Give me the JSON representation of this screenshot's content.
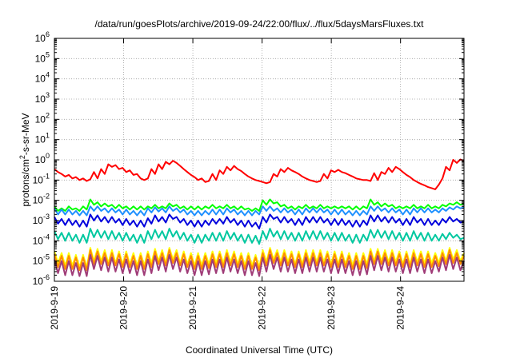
{
  "chart_data": {
    "type": "line",
    "title": "/data/run/goesPlots/archive/2019-09-24/22:00/flux/../flux/5daysMarsFluxes.txt",
    "xlabel": "Coordinated Universal Time (UTC)",
    "ylabel": {
      "before": "protons/cm",
      "sup": "2",
      "after": "-s-sr-MeV"
    },
    "x_ticks": [
      "2019-9-19",
      "2019-9-20",
      "2019-9-21",
      "2019-9-22",
      "2019-9-23",
      "2019-9-24"
    ],
    "xlim": [
      "2019-09-19T00:00",
      "2019-09-24T22:00"
    ],
    "y_scale": "log",
    "ylim": [
      1e-06,
      1000000.0
    ],
    "y_ticks": [
      {
        "base": "10",
        "exp": "6"
      },
      {
        "base": "10",
        "exp": "5"
      },
      {
        "base": "10",
        "exp": "4"
      },
      {
        "base": "10",
        "exp": "3"
      },
      {
        "base": "10",
        "exp": "2"
      },
      {
        "base": "10",
        "exp": "1"
      },
      {
        "base": "10",
        "exp": "0"
      },
      {
        "base": "10",
        "exp": "-1"
      },
      {
        "base": "10",
        "exp": "-2"
      },
      {
        "base": "10",
        "exp": "-3"
      },
      {
        "base": "10",
        "exp": "-4"
      },
      {
        "base": "10",
        "exp": "-5"
      },
      {
        "base": "10",
        "exp": "-6"
      }
    ],
    "grid": true,
    "legend": "none",
    "series": [
      {
        "color": "#ff0000",
        "values": [
          0.35,
          0.25,
          0.2,
          0.15,
          0.18,
          0.12,
          0.14,
          0.1,
          0.12,
          0.09,
          0.11,
          0.25,
          0.12,
          0.35,
          0.2,
          0.6,
          0.45,
          0.55,
          0.35,
          0.4,
          0.25,
          0.3,
          0.18,
          0.2,
          0.12,
          0.1,
          0.12,
          0.35,
          0.2,
          0.6,
          0.35,
          0.8,
          0.6,
          0.9,
          0.7,
          0.5,
          0.35,
          0.25,
          0.18,
          0.14,
          0.1,
          0.12,
          0.08,
          0.09,
          0.2,
          0.1,
          0.3,
          0.2,
          0.45,
          0.3,
          0.5,
          0.35,
          0.28,
          0.2,
          0.15,
          0.12,
          0.1,
          0.09,
          0.08,
          0.07,
          0.08,
          0.2,
          0.15,
          0.35,
          0.25,
          0.4,
          0.3,
          0.25,
          0.2,
          0.15,
          0.12,
          0.1,
          0.09,
          0.08,
          0.09,
          0.2,
          0.12,
          0.3,
          0.25,
          0.32,
          0.25,
          0.22,
          0.18,
          0.15,
          0.12,
          0.11,
          0.1,
          0.1,
          0.09,
          0.22,
          0.1,
          0.25,
          0.2,
          0.4,
          0.25,
          0.45,
          0.35,
          0.25,
          0.18,
          0.14,
          0.1,
          0.08,
          0.065,
          0.055,
          0.045,
          0.04,
          0.035,
          0.06,
          0.12,
          0.45,
          0.3,
          1.0,
          0.7,
          1.05,
          0.9
        ]
      },
      {
        "color": "#00ff00",
        "values": [
          0.005,
          0.003,
          0.004,
          0.003,
          0.005,
          0.0035,
          0.004,
          0.003,
          0.005,
          0.0035,
          0.011,
          0.006,
          0.008,
          0.005,
          0.007,
          0.005,
          0.006,
          0.004,
          0.006,
          0.004,
          0.005,
          0.0035,
          0.005,
          0.0035,
          0.005,
          0.0035,
          0.005,
          0.004,
          0.006,
          0.004,
          0.005,
          0.004,
          0.007,
          0.005,
          0.006,
          0.004,
          0.005,
          0.0035,
          0.005,
          0.0035,
          0.005,
          0.0035,
          0.005,
          0.004,
          0.006,
          0.004,
          0.005,
          0.004,
          0.006,
          0.004,
          0.005,
          0.0035,
          0.005,
          0.0035,
          0.004,
          0.003,
          0.004,
          0.003,
          0.01,
          0.006,
          0.011,
          0.007,
          0.008,
          0.005,
          0.006,
          0.004,
          0.005,
          0.0035,
          0.005,
          0.004,
          0.006,
          0.004,
          0.005,
          0.004,
          0.006,
          0.004,
          0.005,
          0.004,
          0.005,
          0.004,
          0.005,
          0.004,
          0.005,
          0.0035,
          0.005,
          0.0035,
          0.005,
          0.004,
          0.011,
          0.006,
          0.008,
          0.005,
          0.007,
          0.005,
          0.006,
          0.004,
          0.005,
          0.004,
          0.005,
          0.004,
          0.006,
          0.004,
          0.005,
          0.004,
          0.006,
          0.004,
          0.005,
          0.004,
          0.006,
          0.005,
          0.007,
          0.006,
          0.008,
          0.006,
          0.007
        ]
      },
      {
        "color": "#1e90ff",
        "values": [
          0.004,
          0.002,
          0.0035,
          0.002,
          0.0035,
          0.002,
          0.003,
          0.0018,
          0.003,
          0.0018,
          0.005,
          0.003,
          0.005,
          0.003,
          0.004,
          0.0025,
          0.004,
          0.0025,
          0.0035,
          0.002,
          0.0035,
          0.002,
          0.003,
          0.0018,
          0.003,
          0.0018,
          0.004,
          0.0025,
          0.0045,
          0.0028,
          0.004,
          0.0025,
          0.005,
          0.003,
          0.004,
          0.0025,
          0.0035,
          0.002,
          0.003,
          0.0018,
          0.003,
          0.0018,
          0.003,
          0.002,
          0.0035,
          0.002,
          0.0035,
          0.002,
          0.004,
          0.0025,
          0.0035,
          0.002,
          0.003,
          0.0018,
          0.003,
          0.0018,
          0.003,
          0.002,
          0.005,
          0.003,
          0.005,
          0.003,
          0.004,
          0.0025,
          0.004,
          0.0025,
          0.0035,
          0.002,
          0.0035,
          0.002,
          0.004,
          0.0025,
          0.004,
          0.0025,
          0.004,
          0.0025,
          0.0035,
          0.002,
          0.0035,
          0.002,
          0.0035,
          0.002,
          0.003,
          0.0018,
          0.003,
          0.0018,
          0.003,
          0.002,
          0.005,
          0.003,
          0.005,
          0.003,
          0.004,
          0.0025,
          0.004,
          0.0025,
          0.0035,
          0.002,
          0.0035,
          0.002,
          0.004,
          0.0025,
          0.004,
          0.0025,
          0.004,
          0.0025,
          0.0035,
          0.0025,
          0.004,
          0.003,
          0.0045,
          0.0035,
          0.005,
          0.004,
          0.0045
        ]
      },
      {
        "color": "#0000dd",
        "values": [
          0.0015,
          0.0007,
          0.0012,
          0.0006,
          0.0012,
          0.0006,
          0.001,
          0.0005,
          0.001,
          0.0005,
          0.002,
          0.001,
          0.0018,
          0.0009,
          0.0015,
          0.0008,
          0.0015,
          0.0008,
          0.0012,
          0.0006,
          0.0012,
          0.0006,
          0.001,
          0.0005,
          0.001,
          0.0005,
          0.0013,
          0.0007,
          0.0018,
          0.0009,
          0.0015,
          0.0008,
          0.002,
          0.0012,
          0.0015,
          0.0008,
          0.0012,
          0.0006,
          0.001,
          0.0005,
          0.001,
          0.0005,
          0.001,
          0.0006,
          0.0012,
          0.0007,
          0.0012,
          0.0007,
          0.0015,
          0.0008,
          0.0012,
          0.0006,
          0.001,
          0.0005,
          0.001,
          0.0005,
          0.0008,
          0.0004,
          0.0015,
          0.0008,
          0.002,
          0.0012,
          0.0015,
          0.0008,
          0.0015,
          0.0008,
          0.0012,
          0.0006,
          0.0012,
          0.0006,
          0.0015,
          0.0008,
          0.0015,
          0.0008,
          0.0015,
          0.0008,
          0.0012,
          0.0006,
          0.0012,
          0.0006,
          0.0012,
          0.0006,
          0.001,
          0.0005,
          0.001,
          0.0005,
          0.001,
          0.0006,
          0.0018,
          0.0009,
          0.0018,
          0.0009,
          0.0015,
          0.0008,
          0.0015,
          0.0008,
          0.0012,
          0.0006,
          0.0012,
          0.0006,
          0.0015,
          0.0008,
          0.0012,
          0.0006,
          0.0012,
          0.0006,
          0.001,
          0.0006,
          0.0012,
          0.0008,
          0.0015,
          0.0009,
          0.0012,
          0.0008,
          0.0009
        ]
      },
      {
        "color": "#00c8a0",
        "values": [
          0.0003,
          0.00012,
          0.00025,
          0.0001,
          0.00025,
          0.0001,
          0.0002,
          8e-05,
          0.0002,
          8e-05,
          0.0004,
          0.00015,
          0.00035,
          0.00014,
          0.0003,
          0.00012,
          0.0003,
          0.00012,
          0.00025,
          0.0001,
          0.00025,
          0.0001,
          0.0002,
          8e-05,
          0.0002,
          8e-05,
          0.0003,
          0.00012,
          0.00035,
          0.00014,
          0.0003,
          0.00012,
          0.0004,
          0.00016,
          0.0003,
          0.00012,
          0.00025,
          0.0001,
          0.0002,
          8e-05,
          0.0002,
          8e-05,
          0.0002,
          0.0001,
          0.00025,
          0.0001,
          0.00025,
          0.0001,
          0.0003,
          0.00012,
          0.00025,
          0.0001,
          0.0002,
          8e-05,
          0.0002,
          8e-05,
          0.00018,
          7e-05,
          0.0003,
          0.00012,
          0.0004,
          0.00016,
          0.0003,
          0.00012,
          0.0003,
          0.00012,
          0.00025,
          0.0001,
          0.00025,
          0.0001,
          0.0003,
          0.00012,
          0.0003,
          0.00012,
          0.0003,
          0.00012,
          0.00025,
          0.0001,
          0.00025,
          0.0001,
          0.00025,
          0.0001,
          0.0002,
          8e-05,
          0.0002,
          8e-05,
          0.0002,
          0.0001,
          0.00035,
          0.00014,
          0.00035,
          0.00014,
          0.0003,
          0.00012,
          0.0003,
          0.00012,
          0.00025,
          0.0001,
          0.00025,
          0.0001,
          0.0003,
          0.00012,
          0.00025,
          0.0001,
          0.00025,
          0.0001,
          0.0002,
          0.0001,
          0.00022,
          0.00012,
          0.00025,
          0.00014,
          0.0002,
          0.00012,
          0.00014
        ]
      },
      {
        "color": "#ffff00",
        "values": [
          3e-05,
          8e-06,
          2.5e-05,
          6e-06,
          2.5e-05,
          6e-06,
          2e-05,
          5e-06,
          2e-05,
          5e-06,
          4.5e-05,
          1e-05,
          4e-05,
          1e-05,
          3.5e-05,
          8e-06,
          3.5e-05,
          8e-06,
          3e-05,
          7e-06,
          3e-05,
          7e-06,
          2.5e-05,
          6e-06,
          2.5e-05,
          6e-06,
          3e-05,
          8e-06,
          4e-05,
          1e-05,
          3.5e-05,
          8e-06,
          4.5e-05,
          1.2e-05,
          3.5e-05,
          8e-06,
          3e-05,
          7e-06,
          2.5e-05,
          6e-06,
          2.5e-05,
          6e-06,
          2.5e-05,
          7e-06,
          3e-05,
          8e-06,
          3e-05,
          8e-06,
          3.5e-05,
          9e-06,
          3e-05,
          7e-06,
          2.5e-05,
          6e-06,
          2.5e-05,
          6e-06,
          2e-05,
          5e-06,
          3.5e-05,
          9e-06,
          4.5e-05,
          1.2e-05,
          3.5e-05,
          9e-06,
          3.5e-05,
          9e-06,
          3e-05,
          7e-06,
          3e-05,
          7e-06,
          3.5e-05,
          9e-06,
          3.5e-05,
          9e-06,
          3.5e-05,
          9e-06,
          3e-05,
          7e-06,
          3e-05,
          7e-06,
          3e-05,
          7e-06,
          2.5e-05,
          6e-06,
          2.5e-05,
          6e-06,
          2.5e-05,
          7e-06,
          4e-05,
          1e-05,
          4e-05,
          1e-05,
          3.5e-05,
          9e-06,
          3.5e-05,
          9e-06,
          3e-05,
          7e-06,
          3e-05,
          7e-06,
          3.5e-05,
          9e-06,
          3e-05,
          8e-06,
          3e-05,
          8e-06,
          2.5e-05,
          8e-06,
          3.5e-05,
          1e-05,
          4.5e-05,
          1.2e-05,
          3.5e-05,
          1e-05,
          2.5e-05
        ]
      },
      {
        "color": "#ff8c00",
        "values": [
          2.2e-05,
          5e-06,
          1.8e-05,
          4e-06,
          1.8e-05,
          4e-06,
          1.5e-05,
          3.5e-06,
          1.5e-05,
          3.5e-06,
          3.5e-05,
          7e-06,
          3e-05,
          7e-06,
          2.5e-05,
          6e-06,
          2.5e-05,
          6e-06,
          2.2e-05,
          5e-06,
          2.2e-05,
          5e-06,
          1.8e-05,
          4e-06,
          1.8e-05,
          4e-06,
          2.2e-05,
          5e-06,
          3e-05,
          7e-06,
          2.5e-05,
          6e-06,
          3.5e-05,
          8e-06,
          2.5e-05,
          6e-06,
          2.2e-05,
          5e-06,
          1.8e-05,
          4e-06,
          1.8e-05,
          4e-06,
          1.8e-05,
          4.5e-06,
          2.2e-05,
          5e-06,
          2.2e-05,
          5e-06,
          2.5e-05,
          6e-06,
          2.2e-05,
          5e-06,
          1.8e-05,
          4e-06,
          1.8e-05,
          4e-06,
          1.5e-05,
          3.5e-06,
          2.5e-05,
          6e-06,
          3.5e-05,
          8e-06,
          2.5e-05,
          6e-06,
          2.5e-05,
          6e-06,
          2.2e-05,
          5e-06,
          2.2e-05,
          5e-06,
          2.5e-05,
          6e-06,
          2.5e-05,
          6e-06,
          2.5e-05,
          6e-06,
          2.2e-05,
          5e-06,
          2.2e-05,
          5e-06,
          2.2e-05,
          5e-06,
          1.8e-05,
          4e-06,
          1.8e-05,
          4e-06,
          1.8e-05,
          4.5e-06,
          3e-05,
          7e-06,
          3e-05,
          7e-06,
          2.5e-05,
          6e-06,
          2.5e-05,
          6e-06,
          2.2e-05,
          5e-06,
          2.2e-05,
          5e-06,
          2.5e-05,
          6e-06,
          2.2e-05,
          5e-06,
          2.2e-05,
          5e-06,
          1.8e-05,
          5.5e-06,
          2.5e-05,
          7e-06,
          3.5e-05,
          8e-06,
          2.5e-05,
          7e-06,
          1.8e-05
        ]
      },
      {
        "color": "#a03c78",
        "values": [
          1.2e-05,
          2.5e-06,
          1e-05,
          2e-06,
          1e-05,
          2e-06,
          8e-06,
          1.8e-06,
          8e-06,
          1.8e-06,
          2e-05,
          4e-06,
          1.8e-05,
          3.5e-06,
          1.5e-05,
          3e-06,
          1.5e-05,
          3e-06,
          1.2e-05,
          2.5e-06,
          1.2e-05,
          2.5e-06,
          1e-05,
          2e-06,
          1e-05,
          2e-06,
          1.2e-05,
          2.5e-06,
          1.8e-05,
          3.5e-06,
          1.5e-05,
          3e-06,
          2e-05,
          4e-06,
          1.5e-05,
          3e-06,
          1.2e-05,
          2.5e-06,
          1e-05,
          2e-06,
          1e-05,
          2e-06,
          1e-05,
          2.2e-06,
          1.2e-05,
          2.5e-06,
          1.2e-05,
          2.5e-06,
          1.5e-05,
          3e-06,
          1.2e-05,
          2.5e-06,
          1e-05,
          2e-06,
          1e-05,
          2e-06,
          8e-06,
          1.8e-06,
          1.5e-05,
          3e-06,
          2e-05,
          4e-06,
          1.5e-05,
          3e-06,
          1.5e-05,
          3e-06,
          1.2e-05,
          2.5e-06,
          1.2e-05,
          2.5e-06,
          1.5e-05,
          3e-06,
          1.5e-05,
          3e-06,
          1.5e-05,
          3e-06,
          1.2e-05,
          2.5e-06,
          1.2e-05,
          2.5e-06,
          1.2e-05,
          2.5e-06,
          1e-05,
          2e-06,
          1e-05,
          2e-06,
          1e-05,
          2.2e-06,
          1.8e-05,
          3.5e-06,
          1.8e-05,
          3.5e-06,
          1.5e-05,
          3e-06,
          1.5e-05,
          3e-06,
          1.2e-05,
          2.5e-06,
          1.2e-05,
          2.5e-06,
          1.5e-05,
          3e-06,
          1.2e-05,
          2.5e-06,
          1.2e-05,
          2.5e-06,
          1e-05,
          3e-06,
          1.5e-05,
          3.5e-06,
          2e-05,
          4e-06,
          1.5e-05,
          3.5e-06,
          1e-05
        ]
      }
    ]
  }
}
